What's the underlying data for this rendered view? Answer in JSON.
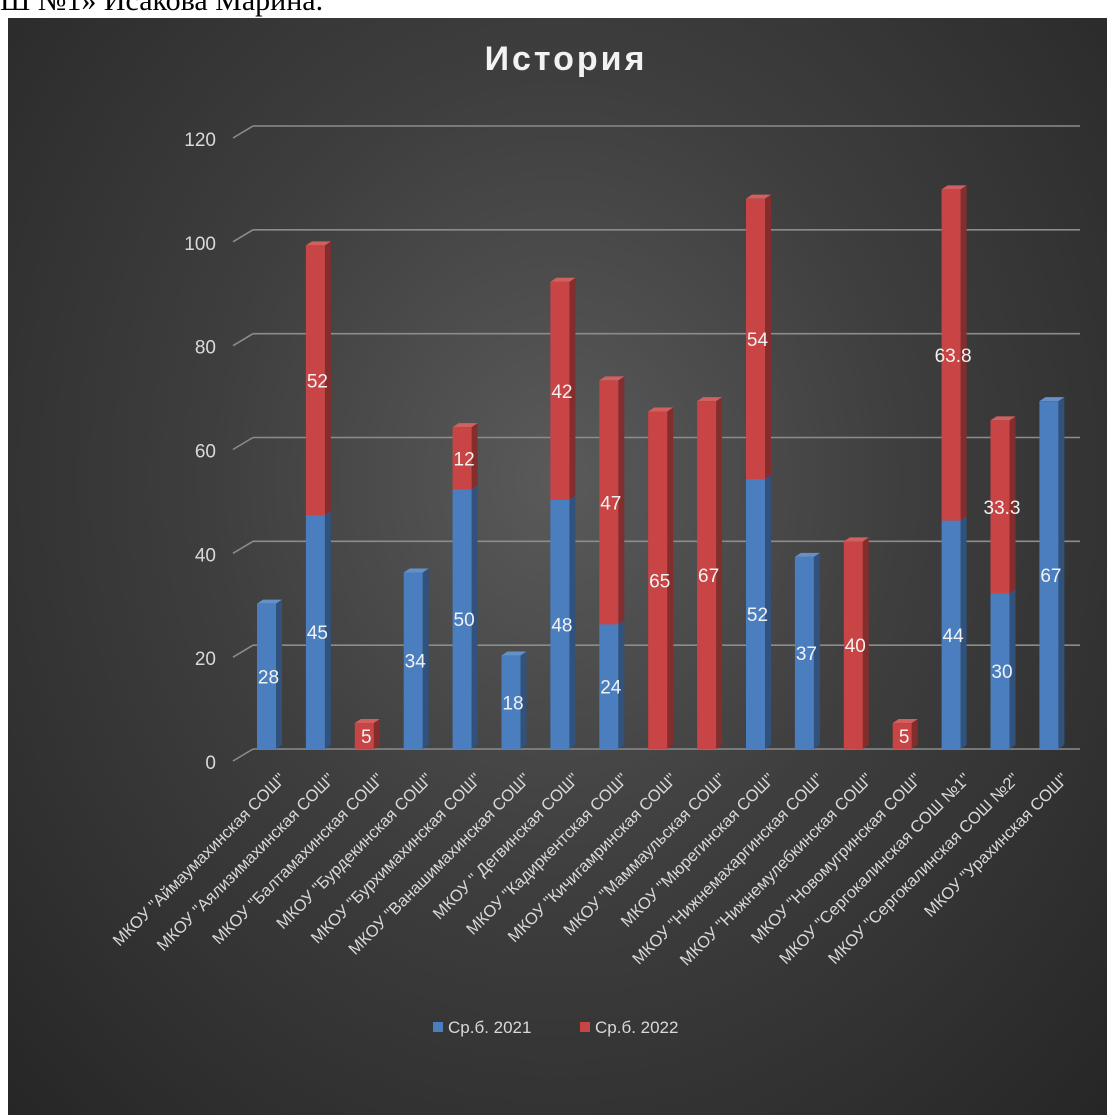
{
  "header_fragment": "Ш №1» Исакова Марина.",
  "colors": {
    "series_2021": "#4a7ebf",
    "series_2022": "#c94545",
    "grid": "#8c8c8c"
  },
  "chart_data": {
    "type": "bar",
    "stacked": true,
    "title": "История",
    "xlabel": "",
    "ylabel": "",
    "ylim": [
      0,
      120
    ],
    "yticks": [
      0,
      20,
      40,
      60,
      80,
      100,
      120
    ],
    "grid": true,
    "legend_position": "bottom",
    "categories": [
      "МКОУ \"Аймаумахинская СОШ\"",
      "МКОУ \"Аялизимахинская СОШ\"",
      "МКОУ \"Балтамахинская СОШ\"",
      "МКОУ \"Бурдекинская СОШ\"",
      "МКОУ \"Бурхимахинская СОШ\"",
      "МКОУ \"Ванашимахинская СОШ\"",
      "МКОУ \" Дегвинская СОШ\"",
      "МКОУ \"Кадиркентская СОШ\"",
      "МКОУ \"Кичигамринская СОШ\"",
      "МКОУ \"Маммаульская СОШ\"",
      "МКОУ \"Мюрегинская СОШ\"",
      "МКОУ \"Нижнемахаргинская СОШ\"",
      "МКОУ \"Нижнемулебкинская СОШ\"",
      "МКОУ \"Новомугринская СОШ\"",
      "МКОУ \"Сергокалинская СОШ №1\"",
      "МКОУ \"Сергокалинская СОШ №2\"",
      "МКОУ \"Урахинская СОШ\""
    ],
    "series": [
      {
        "name": "Ср.б. 2021",
        "values": [
          28,
          45,
          null,
          34,
          50,
          18,
          48,
          24,
          null,
          null,
          52,
          37,
          null,
          null,
          44,
          30,
          67
        ],
        "labels": [
          "28",
          "45",
          "",
          "34",
          "50",
          "18",
          "48",
          "24",
          "",
          "",
          "52",
          "37",
          "",
          "",
          "44",
          "30",
          "67"
        ]
      },
      {
        "name": "Ср.б. 2022",
        "values": [
          null,
          52,
          5,
          null,
          12,
          null,
          42,
          47,
          65,
          67,
          54,
          null,
          40,
          5,
          63.8,
          33.3,
          null
        ],
        "labels": [
          "",
          "52",
          "5",
          "",
          "12",
          "",
          "42",
          "47",
          "65",
          "67",
          "54",
          "",
          "40",
          "5",
          "63.8",
          "33.3",
          ""
        ]
      }
    ]
  }
}
